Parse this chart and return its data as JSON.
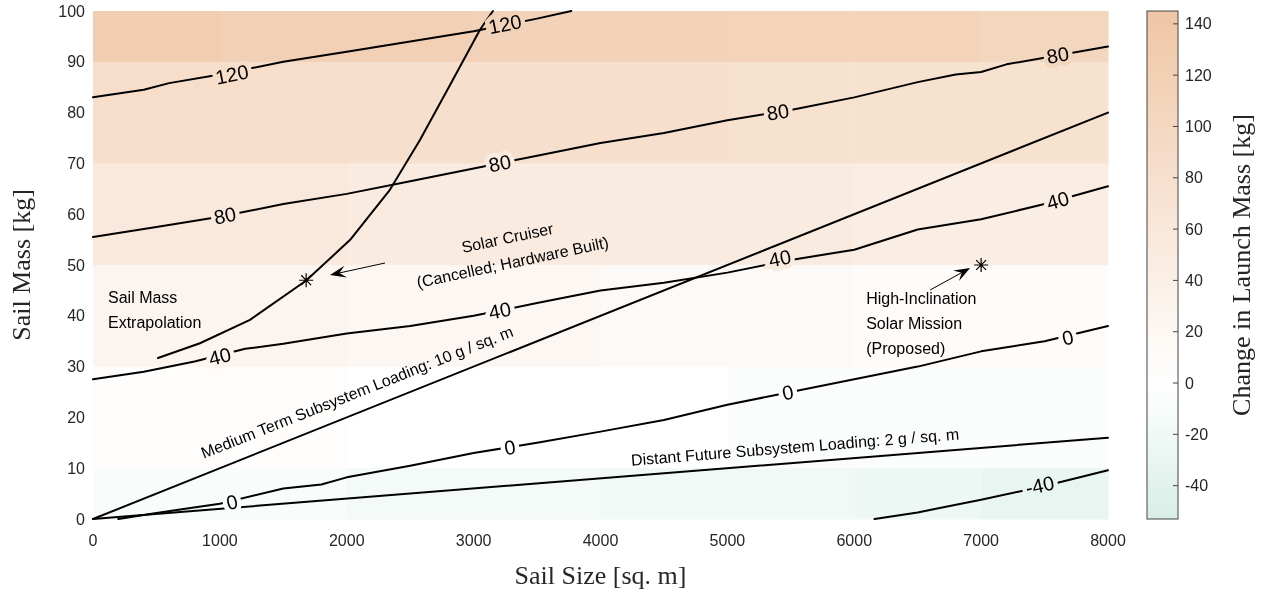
{
  "chart_data": {
    "type": "heatmap",
    "xlabel": "Sail Size [sq. m]",
    "ylabel": "Sail Mass [kg]",
    "clabel": "Change in Launch Mass [kg]",
    "xlim": [
      0,
      8000
    ],
    "xticks": [
      0,
      1000,
      2000,
      3000,
      4000,
      5000,
      6000,
      7000,
      8000
    ],
    "ylim": [
      0,
      100
    ],
    "yticks": [
      0,
      10,
      20,
      30,
      40,
      50,
      60,
      70,
      80,
      90,
      100
    ],
    "clim": [
      -53,
      145
    ],
    "cticks": [
      -40,
      -20,
      0,
      20,
      40,
      60,
      80,
      100,
      120,
      140
    ],
    "cells": [
      [
        125,
        120,
        120,
        115,
        115,
        110,
        110,
        105
      ],
      [
        85,
        85,
        80,
        80,
        80,
        75,
        75,
        75
      ],
      [
        85,
        85,
        80,
        80,
        80,
        75,
        75,
        75
      ],
      [
        55,
        55,
        50,
        50,
        50,
        50,
        45,
        45
      ],
      [
        55,
        55,
        50,
        50,
        50,
        50,
        45,
        45
      ],
      [
        25,
        25,
        20,
        20,
        15,
        15,
        10,
        10
      ],
      [
        25,
        25,
        20,
        20,
        15,
        15,
        10,
        10
      ],
      [
        5,
        5,
        0,
        0,
        0,
        -5,
        -5,
        -5
      ],
      [
        5,
        5,
        0,
        0,
        0,
        -5,
        -5,
        -5
      ],
      [
        -10,
        -10,
        -15,
        -15,
        -20,
        -20,
        -25,
        -30
      ]
    ],
    "series": [
      {
        "type": "line",
        "color": "#000000",
        "x": [
          0,
          400,
          600,
          1000,
          1500,
          2000,
          2500,
          3000,
          3500,
          3770
        ],
        "values": [
          83,
          84.5,
          85.8,
          87.5,
          90,
          92,
          94,
          96,
          98.5,
          100
        ]
      },
      {
        "type": "line",
        "color": "#000000",
        "x": [
          0,
          500,
          1000,
          1500,
          2000,
          2500,
          3000,
          3500,
          4000,
          4500,
          5000,
          5500,
          6000,
          6500,
          6800,
          7000,
          7200,
          8000
        ],
        "values": [
          55.5,
          57.5,
          59.5,
          62,
          64,
          66.5,
          69,
          71.5,
          74,
          76,
          78.5,
          80.5,
          83,
          86,
          87.5,
          88,
          89.5,
          93
        ]
      },
      {
        "type": "line",
        "color": "#000000",
        "x": [
          0,
          400,
          800,
          1200,
          1500,
          2000,
          2500,
          3000,
          3500,
          4000,
          4500,
          5000,
          5500,
          6000,
          6500,
          7000,
          7500,
          8000
        ],
        "values": [
          27.5,
          29,
          31,
          33.5,
          34.5,
          36.5,
          38,
          40,
          42.5,
          45,
          46.5,
          48.5,
          51,
          53,
          57,
          59,
          62,
          65.5
        ]
      },
      {
        "type": "line",
        "color": "#000000",
        "x": [
          200,
          500,
          1000,
          1500,
          1800,
          2000,
          2500,
          3000,
          3500,
          4000,
          4500,
          5000,
          5500,
          6000,
          6500,
          7000,
          7500,
          8000
        ],
        "values": [
          0,
          1.2,
          3,
          6,
          6.8,
          8.2,
          10.5,
          13,
          15,
          17.2,
          19.5,
          22.5,
          25,
          27.5,
          30,
          33,
          35,
          38
        ]
      },
      {
        "type": "line",
        "color": "#000000",
        "x": [
          6160,
          6500,
          7000,
          7500,
          8000
        ],
        "values": [
          0,
          1.3,
          3.8,
          6.5,
          9.6
        ]
      },
      {
        "type": "line",
        "color": "#000000",
        "x": [
          512,
          843,
          1237,
          1678,
          2025,
          2340,
          2577,
          2813,
          3050,
          3152
        ],
        "values": [
          31.7,
          34.6,
          39.2,
          46.9,
          54.9,
          64.8,
          74.6,
          85.4,
          96.3,
          100
        ]
      },
      {
        "type": "line",
        "color": "#000000",
        "x": [
          0,
          8000
        ],
        "values": [
          0,
          80
        ]
      },
      {
        "type": "line",
        "color": "#000000",
        "x": [
          0,
          8000
        ],
        "values": [
          0,
          16
        ]
      },
      {
        "type": "scatter",
        "color": "#000000",
        "marker": "cross",
        "x": [
          1680,
          7000
        ],
        "values": [
          47,
          50
        ]
      }
    ],
    "annotations": [
      {
        "text": "120",
        "x": 1095,
        "y": 87.5
      },
      {
        "text": "120",
        "x": 3247,
        "y": 97.4
      },
      {
        "text": "80",
        "x": 1040,
        "y": 59.7
      },
      {
        "text": "80",
        "x": 3207,
        "y": 70
      },
      {
        "text": "80",
        "x": 5398,
        "y": 80.1
      },
      {
        "text": "80",
        "x": 7604,
        "y": 91.3
      },
      {
        "text": "40",
        "x": 1000,
        "y": 32
      },
      {
        "text": "40",
        "x": 3207,
        "y": 41
      },
      {
        "text": "40",
        "x": 5414,
        "y": 51.3
      },
      {
        "text": "40",
        "x": 7604,
        "y": 62.7
      },
      {
        "text": "0",
        "x": 1095,
        "y": 3.3
      },
      {
        "text": "0",
        "x": 3286,
        "y": 14.1
      },
      {
        "text": "0",
        "x": 5477,
        "y": 24.9
      },
      {
        "text": "0",
        "x": 7683,
        "y": 35.7
      },
      {
        "text": "-40",
        "x": 7463,
        "y": 6.6
      },
      "Sail Mass\nExtrapolation",
      "Medium Term Subsystem Loading: 10 g / sq. m",
      "Distant Future Subsystem Loading: 2 g / sq. m",
      "Solar Cruiser\n(Cancelled; Hardware Built)",
      {
        "text": "High-Inclination\nSolar Mission\n(Proposed)",
        "x": 7000,
        "y": 50
      }
    ]
  }
}
